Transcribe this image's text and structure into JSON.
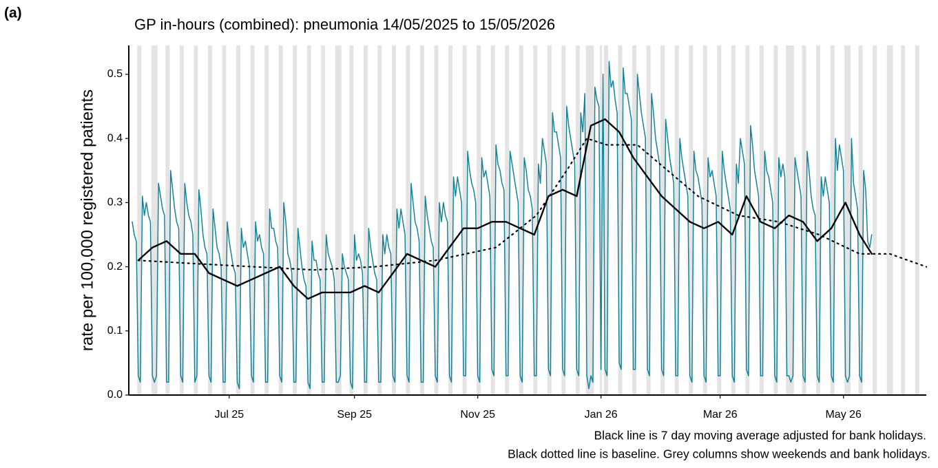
{
  "chart_data": {
    "type": "line",
    "panel_label": "(a)",
    "title": "GP in-hours (combined): pneumonia 14/05/2025 to 15/05/2026",
    "y_label": "rate per 100,000 registered patients",
    "notes": [
      "Black line is 7 day moving average adjusted for bank holidays.",
      "Black dotted line is baseline. Grey columns show weekends and bank holidays."
    ],
    "xlim": [
      -1.7,
      393
    ],
    "xticks": [
      {
        "value": 48,
        "label": "Jul 25"
      },
      {
        "value": 110,
        "label": "Sep 25"
      },
      {
        "value": 171,
        "label": "Nov 25"
      },
      {
        "value": 232,
        "label": "Jan 26"
      },
      {
        "value": 291,
        "label": "Mar 26"
      },
      {
        "value": 352,
        "label": "May 26"
      }
    ],
    "ylim": [
      0,
      0.545
    ],
    "yticks": [
      {
        "value": 0,
        "label": "0.0"
      },
      0.1,
      0.2,
      0.3,
      0.4,
      0.5
    ],
    "shade_color": "#e3e3e3",
    "shaded_days": [
      3,
      4,
      10,
      11,
      12,
      17,
      18,
      24,
      25,
      31,
      32,
      38,
      39,
      45,
      46,
      52,
      53,
      59,
      60,
      66,
      67,
      73,
      74,
      80,
      81,
      87,
      88,
      94,
      95,
      101,
      102,
      103,
      108,
      109,
      115,
      116,
      122,
      123,
      129,
      130,
      136,
      137,
      143,
      144,
      150,
      151,
      157,
      158,
      164,
      165,
      171,
      172,
      178,
      179,
      185,
      186,
      192,
      193,
      199,
      200,
      206,
      207,
      213,
      214,
      220,
      221,
      225,
      226,
      227,
      228,
      232,
      234,
      235,
      241,
      242,
      248,
      249,
      255,
      256,
      262,
      263,
      269,
      270,
      276,
      277,
      283,
      284,
      290,
      291,
      297,
      298,
      304,
      305,
      311,
      312,
      318,
      319,
      324,
      325,
      326,
      327,
      332,
      333,
      339,
      340,
      346,
      347,
      353,
      354,
      355,
      360,
      361,
      367,
      368,
      374,
      375,
      376,
      381,
      382,
      388,
      389
    ],
    "series": [
      {
        "color": "#13839a",
        "style": "solid",
        "x": [
          0,
          1,
          2,
          3,
          4,
          5,
          6,
          7,
          8,
          9,
          10,
          11,
          12,
          13,
          14,
          15,
          16,
          17,
          18,
          19,
          20,
          21,
          22,
          23,
          24,
          25,
          26,
          27,
          28,
          29,
          30,
          31,
          32,
          33,
          34,
          35,
          36,
          37,
          38,
          39,
          40,
          41,
          42,
          43,
          44,
          45,
          46,
          47,
          48,
          49,
          50,
          51,
          52,
          53,
          54,
          55,
          56,
          57,
          58,
          59,
          60,
          61,
          62,
          63,
          64,
          65,
          66,
          67,
          68,
          69,
          70,
          71,
          72,
          73,
          74,
          75,
          76,
          77,
          78,
          79,
          80,
          81,
          82,
          83,
          84,
          85,
          86,
          87,
          88,
          89,
          90,
          91,
          92,
          93,
          94,
          95,
          96,
          97,
          98,
          99,
          100,
          101,
          102,
          103,
          104,
          105,
          106,
          107,
          108,
          109,
          110,
          111,
          112,
          113,
          114,
          115,
          116,
          117,
          118,
          119,
          120,
          121,
          122,
          123,
          124,
          125,
          126,
          127,
          128,
          129,
          130,
          131,
          132,
          133,
          134,
          135,
          136,
          137,
          138,
          139,
          140,
          141,
          142,
          143,
          144,
          145,
          146,
          147,
          148,
          149,
          150,
          151,
          152,
          153,
          154,
          155,
          156,
          157,
          158,
          159,
          160,
          161,
          162,
          163,
          164,
          165,
          166,
          167,
          168,
          169,
          170,
          171,
          172,
          173,
          174,
          175,
          176,
          177,
          178,
          179,
          180,
          181,
          182,
          183,
          184,
          185,
          186,
          187,
          188,
          189,
          190,
          191,
          192,
          193,
          194,
          195,
          196,
          197,
          198,
          199,
          200,
          201,
          202,
          203,
          204,
          205,
          206,
          207,
          208,
          209,
          210,
          211,
          212,
          213,
          214,
          215,
          216,
          217,
          218,
          219,
          220,
          221,
          222,
          223,
          224,
          225,
          226,
          227,
          228,
          229,
          230,
          231,
          232,
          233,
          234,
          235,
          236,
          237,
          238,
          239,
          240,
          241,
          242,
          243,
          244,
          245,
          246,
          247,
          248,
          249,
          250,
          251,
          252,
          253,
          254,
          255,
          256,
          257,
          258,
          259,
          260,
          261,
          262,
          263,
          264,
          265,
          266,
          267,
          268,
          269,
          270,
          271,
          272,
          273,
          274,
          275,
          276,
          277,
          278,
          279,
          280,
          281,
          282,
          283,
          284,
          285,
          286,
          287,
          288,
          289,
          290,
          291,
          292,
          293,
          294,
          295,
          296,
          297,
          298,
          299,
          300,
          301,
          302,
          303,
          304,
          305,
          306,
          307,
          308,
          309,
          310,
          311,
          312,
          313,
          314,
          315,
          316,
          317,
          318,
          319,
          320,
          321,
          322,
          323,
          324,
          325,
          326,
          327,
          328,
          329,
          330,
          331,
          332,
          333,
          334,
          335,
          336,
          337,
          338,
          339,
          340,
          341,
          342,
          343,
          344,
          345,
          346,
          347,
          348,
          349,
          350,
          351,
          352,
          353,
          354,
          355,
          356,
          357,
          358,
          359,
          360,
          361,
          362,
          363,
          364,
          365,
          366
        ],
        "values": [
          0.27,
          0.25,
          0.24,
          0.03,
          0.02,
          0.31,
          0.28,
          0.3,
          0.28,
          0.27,
          0.03,
          0.02,
          0.03,
          0.33,
          0.31,
          0.29,
          0.28,
          0.02,
          0.02,
          0.35,
          0.32,
          0.29,
          0.27,
          0.26,
          0.03,
          0.02,
          0.33,
          0.3,
          0.28,
          0.27,
          0.25,
          0.02,
          0.03,
          0.32,
          0.29,
          0.25,
          0.23,
          0.22,
          0.03,
          0.02,
          0.29,
          0.26,
          0.23,
          0.22,
          0.2,
          0.02,
          0.02,
          0.27,
          0.24,
          0.22,
          0.2,
          0.19,
          0.02,
          0.01,
          0.26,
          0.23,
          0.24,
          0.22,
          0.2,
          0.03,
          0.02,
          0.27,
          0.24,
          0.25,
          0.23,
          0.22,
          0.02,
          0.02,
          0.29,
          0.26,
          0.26,
          0.24,
          0.23,
          0.03,
          0.02,
          0.3,
          0.27,
          0.22,
          0.21,
          0.19,
          0.02,
          0.02,
          0.26,
          0.23,
          0.2,
          0.18,
          0.17,
          0.02,
          0.01,
          0.24,
          0.21,
          0.21,
          0.19,
          0.18,
          0.02,
          0.02,
          0.25,
          0.22,
          0.21,
          0.2,
          0.18,
          0.02,
          0.02,
          0.03,
          0.22,
          0.2,
          0.19,
          0.18,
          0.02,
          0.01,
          0.25,
          0.21,
          0.22,
          0.21,
          0.19,
          0.02,
          0.02,
          0.26,
          0.23,
          0.21,
          0.19,
          0.18,
          0.02,
          0.02,
          0.25,
          0.22,
          0.25,
          0.23,
          0.22,
          0.03,
          0.02,
          0.29,
          0.26,
          0.29,
          0.27,
          0.25,
          0.03,
          0.02,
          0.33,
          0.3,
          0.27,
          0.26,
          0.24,
          0.02,
          0.02,
          0.31,
          0.28,
          0.26,
          0.24,
          0.23,
          0.03,
          0.02,
          0.3,
          0.27,
          0.3,
          0.28,
          0.27,
          0.03,
          0.02,
          0.34,
          0.31,
          0.34,
          0.32,
          0.3,
          0.03,
          0.03,
          0.38,
          0.35,
          0.33,
          0.32,
          0.3,
          0.03,
          0.02,
          0.37,
          0.34,
          0.35,
          0.33,
          0.31,
          0.04,
          0.03,
          0.39,
          0.36,
          0.35,
          0.33,
          0.32,
          0.03,
          0.03,
          0.38,
          0.36,
          0.34,
          0.32,
          0.3,
          0.03,
          0.02,
          0.37,
          0.35,
          0.32,
          0.31,
          0.29,
          0.03,
          0.03,
          0.36,
          0.33,
          0.4,
          0.38,
          0.36,
          0.04,
          0.03,
          0.44,
          0.41,
          0.41,
          0.39,
          0.37,
          0.04,
          0.03,
          0.45,
          0.42,
          0.4,
          0.38,
          0.36,
          0.04,
          0.03,
          0.44,
          0.41,
          0.47,
          0.03,
          0.01,
          0.03,
          0.02,
          0.48,
          0.46,
          0.45,
          0.04,
          0.5,
          0.04,
          0.03,
          0.52,
          0.48,
          0.49,
          0.46,
          0.44,
          0.05,
          0.04,
          0.51,
          0.47,
          0.47,
          0.45,
          0.43,
          0.04,
          0.04,
          0.5,
          0.47,
          0.44,
          0.42,
          0.4,
          0.04,
          0.03,
          0.47,
          0.44,
          0.4,
          0.38,
          0.36,
          0.04,
          0.03,
          0.43,
          0.4,
          0.37,
          0.35,
          0.33,
          0.03,
          0.03,
          0.4,
          0.37,
          0.35,
          0.33,
          0.31,
          0.03,
          0.02,
          0.38,
          0.35,
          0.34,
          0.32,
          0.3,
          0.03,
          0.02,
          0.37,
          0.34,
          0.35,
          0.33,
          0.31,
          0.03,
          0.03,
          0.38,
          0.35,
          0.33,
          0.31,
          0.29,
          0.03,
          0.02,
          0.36,
          0.33,
          0.4,
          0.38,
          0.36,
          0.04,
          0.03,
          0.42,
          0.39,
          0.35,
          0.33,
          0.31,
          0.03,
          0.03,
          0.38,
          0.35,
          0.34,
          0.32,
          0.3,
          0.03,
          0.02,
          0.37,
          0.34,
          0.36,
          0.34,
          0.03,
          0.03,
          0.02,
          0.03,
          0.37,
          0.35,
          0.33,
          0.31,
          0.03,
          0.02,
          0.38,
          0.35,
          0.31,
          0.29,
          0.28,
          0.03,
          0.02,
          0.34,
          0.31,
          0.34,
          0.32,
          0.3,
          0.03,
          0.02,
          0.4,
          0.35,
          0.39,
          0.37,
          0.35,
          0.03,
          0.02,
          0.03,
          0.4,
          0.33,
          0.31,
          0.29,
          0.03,
          0.02,
          0.35,
          0.32,
          0.24,
          0.23,
          0.25
        ]
      },
      {
        "color": "#000000",
        "style": "solid",
        "x": [
          3,
          10,
          17,
          24,
          31,
          38,
          45,
          52,
          59,
          66,
          73,
          80,
          87,
          94,
          101,
          108,
          115,
          122,
          129,
          136,
          143,
          150,
          157,
          164,
          171,
          178,
          185,
          192,
          199,
          206,
          213,
          220,
          227,
          234,
          241,
          248,
          255,
          262,
          269,
          276,
          283,
          290,
          297,
          304,
          311,
          318,
          325,
          332,
          339,
          346,
          353,
          360,
          366
        ],
        "values": [
          0.21,
          0.23,
          0.24,
          0.22,
          0.22,
          0.19,
          0.18,
          0.17,
          0.18,
          0.19,
          0.2,
          0.17,
          0.15,
          0.16,
          0.16,
          0.16,
          0.17,
          0.16,
          0.19,
          0.22,
          0.21,
          0.2,
          0.23,
          0.26,
          0.26,
          0.27,
          0.27,
          0.26,
          0.25,
          0.31,
          0.32,
          0.31,
          0.42,
          0.43,
          0.41,
          0.37,
          0.34,
          0.31,
          0.29,
          0.27,
          0.26,
          0.27,
          0.25,
          0.31,
          0.27,
          0.26,
          0.28,
          0.27,
          0.24,
          0.26,
          0.3,
          0.25,
          0.22
        ]
      },
      {
        "color": "#000000",
        "style": "dotted",
        "x": [
          3,
          30,
          60,
          90,
          120,
          150,
          180,
          200,
          215,
          225,
          235,
          250,
          265,
          280,
          300,
          320,
          340,
          360,
          375,
          393
        ],
        "values": [
          0.21,
          0.205,
          0.2,
          0.195,
          0.2,
          0.21,
          0.23,
          0.28,
          0.35,
          0.4,
          0.39,
          0.39,
          0.35,
          0.31,
          0.28,
          0.27,
          0.25,
          0.22,
          0.22,
          0.2
        ]
      }
    ]
  }
}
